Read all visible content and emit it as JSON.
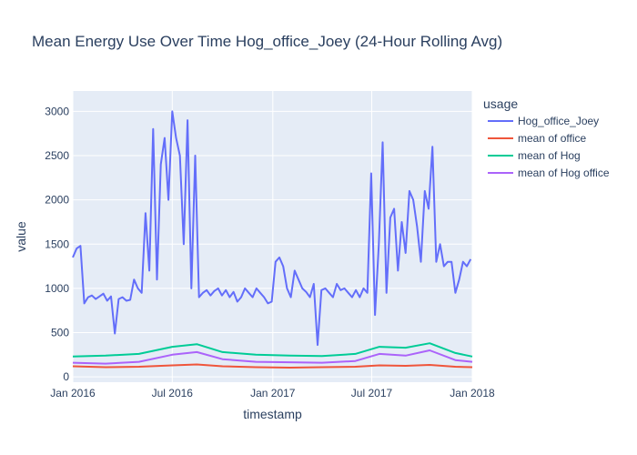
{
  "chart_data": {
    "type": "line",
    "title": "Mean Energy Use Over Time Hog_office_Joey (24-Hour Rolling Avg)",
    "xlabel": "timestamp",
    "ylabel": "value",
    "legend_title": "usage",
    "legend_position": "right",
    "grid": true,
    "xlim": [
      "2016-01-01",
      "2018-01-01"
    ],
    "ylim": [
      -60,
      3230
    ],
    "yticks": [
      0,
      500,
      1000,
      1500,
      2000,
      2500,
      3000
    ],
    "xticks": [
      "Jan 2016",
      "Jul 2016",
      "Jan 2017",
      "Jul 2017",
      "Jan 2018"
    ],
    "xtick_dates": [
      "2016-01-01",
      "2016-07-01",
      "2017-01-01",
      "2017-07-01",
      "2018-01-01"
    ],
    "series": [
      {
        "name": "Hog_office_Joey",
        "color": "#636efa",
        "x": [
          "2016-01-01",
          "2016-01-08",
          "2016-01-15",
          "2016-01-22",
          "2016-01-29",
          "2016-02-05",
          "2016-02-12",
          "2016-02-19",
          "2016-02-26",
          "2016-03-04",
          "2016-03-11",
          "2016-03-18",
          "2016-03-25",
          "2016-04-01",
          "2016-04-08",
          "2016-04-15",
          "2016-04-22",
          "2016-04-29",
          "2016-05-06",
          "2016-05-13",
          "2016-05-20",
          "2016-05-27",
          "2016-06-03",
          "2016-06-10",
          "2016-06-17",
          "2016-06-24",
          "2016-07-01",
          "2016-07-08",
          "2016-07-15",
          "2016-07-22",
          "2016-07-29",
          "2016-08-05",
          "2016-08-12",
          "2016-08-19",
          "2016-08-26",
          "2016-09-02",
          "2016-09-09",
          "2016-09-16",
          "2016-09-23",
          "2016-09-30",
          "2016-10-07",
          "2016-10-14",
          "2016-10-21",
          "2016-10-28",
          "2016-11-04",
          "2016-11-11",
          "2016-11-18",
          "2016-11-25",
          "2016-12-02",
          "2016-12-09",
          "2016-12-16",
          "2016-12-23",
          "2016-12-30",
          "2017-01-06",
          "2017-01-13",
          "2017-01-20",
          "2017-01-27",
          "2017-02-03",
          "2017-02-10",
          "2017-02-17",
          "2017-02-24",
          "2017-03-03",
          "2017-03-10",
          "2017-03-17",
          "2017-03-24",
          "2017-03-31",
          "2017-04-07",
          "2017-04-14",
          "2017-04-21",
          "2017-04-28",
          "2017-05-05",
          "2017-05-12",
          "2017-05-19",
          "2017-05-26",
          "2017-06-02",
          "2017-06-09",
          "2017-06-16",
          "2017-06-23",
          "2017-06-30",
          "2017-07-07",
          "2017-07-14",
          "2017-07-21",
          "2017-07-28",
          "2017-08-04",
          "2017-08-11",
          "2017-08-18",
          "2017-08-25",
          "2017-09-01",
          "2017-09-08",
          "2017-09-15",
          "2017-09-22",
          "2017-09-29",
          "2017-10-06",
          "2017-10-13",
          "2017-10-20",
          "2017-10-27",
          "2017-11-03",
          "2017-11-10",
          "2017-11-17",
          "2017-11-24",
          "2017-12-01",
          "2017-12-08",
          "2017-12-15",
          "2017-12-22",
          "2017-12-29"
        ],
        "values": [
          1350,
          1450,
          1480,
          830,
          900,
          920,
          880,
          910,
          940,
          860,
          910,
          490,
          880,
          900,
          860,
          870,
          1100,
          1000,
          950,
          1850,
          1200,
          2800,
          1100,
          2400,
          2700,
          2000,
          3000,
          2700,
          2500,
          1500,
          2900,
          1000,
          2500,
          900,
          950,
          980,
          920,
          970,
          1000,
          920,
          980,
          900,
          960,
          850,
          900,
          1000,
          950,
          900,
          1000,
          950,
          900,
          830,
          850,
          1300,
          1350,
          1250,
          1000,
          900,
          1200,
          1100,
          1000,
          960,
          900,
          1050,
          360,
          980,
          1000,
          950,
          900,
          1050,
          980,
          1000,
          950,
          900,
          980,
          900,
          1000,
          950,
          2300,
          700,
          1500,
          2650,
          950,
          1800,
          1900,
          1200,
          1750,
          1400,
          2100,
          2000,
          1700,
          1300,
          2100,
          1900,
          2600,
          1300,
          1500,
          1250,
          1300,
          1300,
          950,
          1100,
          1300,
          1250,
          1330
        ]
      },
      {
        "name": "mean of office",
        "color": "#ef553b",
        "x": [
          "2016-01-01",
          "2016-03-01",
          "2016-05-01",
          "2016-07-01",
          "2016-08-15",
          "2016-10-01",
          "2016-12-01",
          "2017-02-01",
          "2017-04-01",
          "2017-06-01",
          "2017-07-15",
          "2017-09-01",
          "2017-10-15",
          "2017-12-01",
          "2018-01-01"
        ],
        "values": [
          120,
          110,
          115,
          130,
          140,
          120,
          110,
          105,
          110,
          115,
          130,
          125,
          135,
          115,
          110
        ]
      },
      {
        "name": "mean of Hog",
        "color": "#00cc96",
        "x": [
          "2016-01-01",
          "2016-03-01",
          "2016-05-01",
          "2016-07-01",
          "2016-08-15",
          "2016-10-01",
          "2016-12-01",
          "2017-02-01",
          "2017-04-01",
          "2017-06-01",
          "2017-07-15",
          "2017-09-01",
          "2017-10-15",
          "2017-12-01",
          "2018-01-01"
        ],
        "values": [
          230,
          240,
          260,
          340,
          370,
          280,
          250,
          240,
          235,
          260,
          340,
          330,
          380,
          270,
          230
        ]
      },
      {
        "name": "mean of Hog office",
        "color": "#ab63fa",
        "x": [
          "2016-01-01",
          "2016-03-01",
          "2016-05-01",
          "2016-07-01",
          "2016-08-15",
          "2016-10-01",
          "2016-12-01",
          "2017-02-01",
          "2017-04-01",
          "2017-06-01",
          "2017-07-15",
          "2017-09-01",
          "2017-10-15",
          "2017-12-01",
          "2018-01-01"
        ],
        "values": [
          160,
          150,
          170,
          250,
          280,
          200,
          170,
          165,
          160,
          180,
          260,
          240,
          300,
          190,
          170
        ]
      }
    ]
  }
}
